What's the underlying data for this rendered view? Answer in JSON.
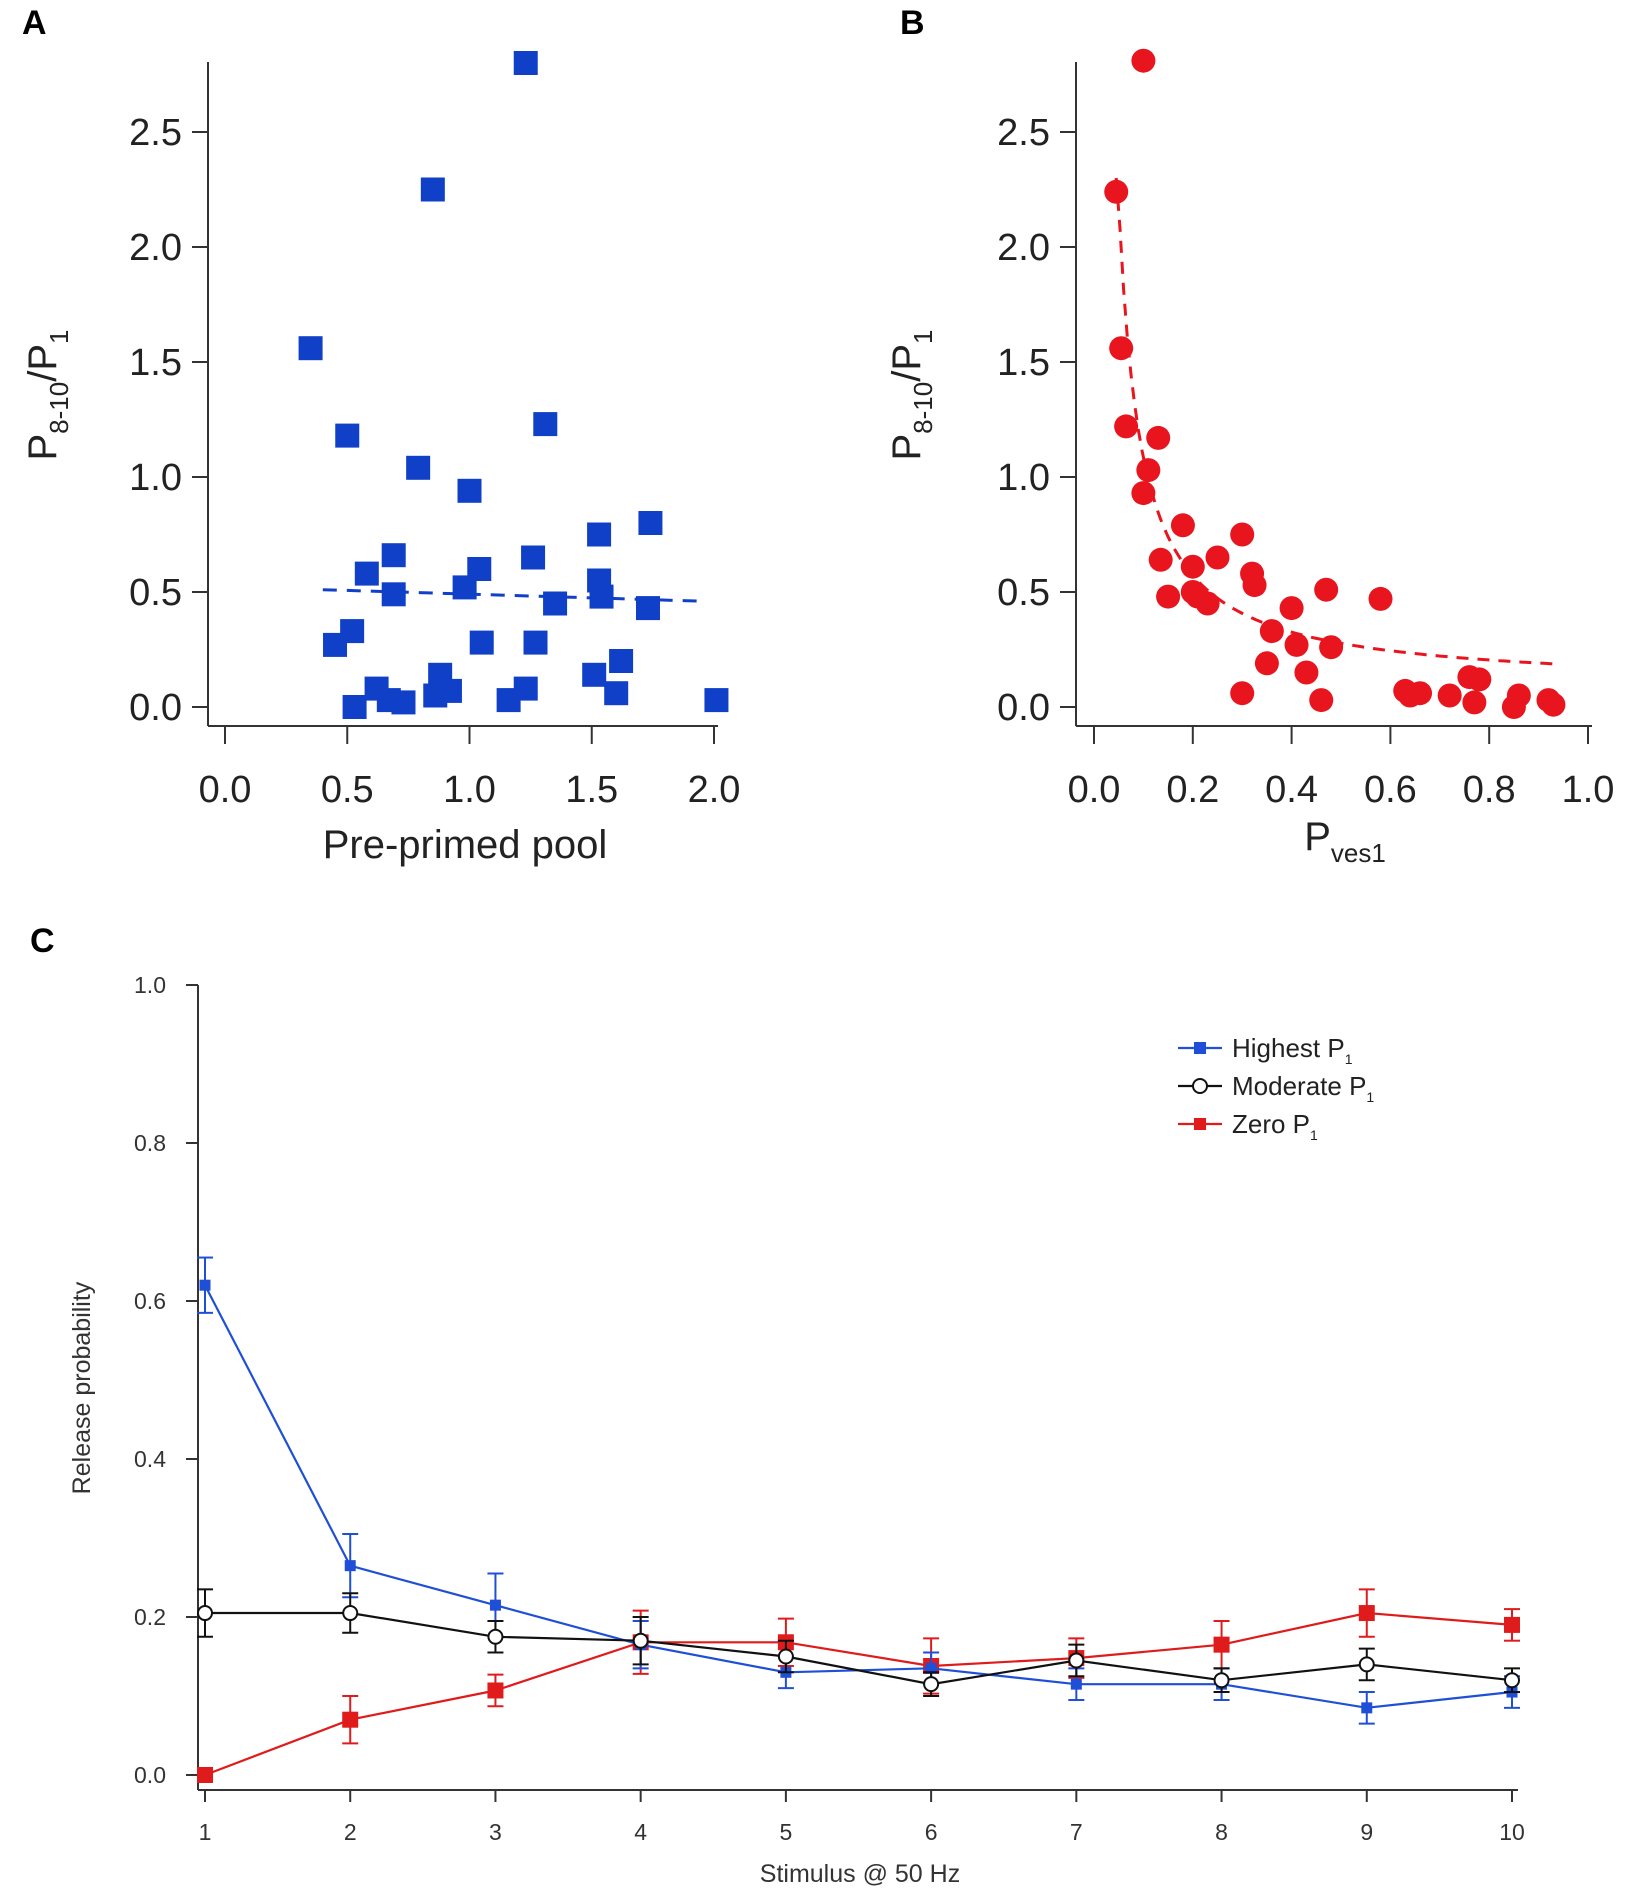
{
  "chart_data": [
    {
      "id": "A",
      "type": "scatter",
      "panel_label": "A",
      "xlabel": "Pre-primed pool",
      "ylabel_main": "P",
      "ylabel_sub": "8-10",
      "ylabel_tail": "/P",
      "ylabel_tail_sub": "1",
      "xlim": [
        0,
        2.0
      ],
      "ylim": [
        0,
        2.8
      ],
      "xticks": [
        "0.0",
        "0.5",
        "1.0",
        "1.5",
        "2.0"
      ],
      "yticks": [
        "0.0",
        "0.5",
        "1.0",
        "1.5",
        "2.0",
        "2.5"
      ],
      "color": "#1040c8",
      "marker": "square",
      "fit_line": {
        "x": [
          0.4,
          1.95
        ],
        "y": [
          0.51,
          0.46
        ],
        "style": "dashed"
      },
      "points": [
        {
          "x": 1.23,
          "y": 2.8
        },
        {
          "x": 0.85,
          "y": 2.25
        },
        {
          "x": 0.35,
          "y": 1.56
        },
        {
          "x": 0.5,
          "y": 1.18
        },
        {
          "x": 1.31,
          "y": 1.23
        },
        {
          "x": 0.79,
          "y": 1.04
        },
        {
          "x": 1.0,
          "y": 0.94
        },
        {
          "x": 1.74,
          "y": 0.8
        },
        {
          "x": 1.53,
          "y": 0.75
        },
        {
          "x": 0.69,
          "y": 0.66
        },
        {
          "x": 1.26,
          "y": 0.65
        },
        {
          "x": 1.04,
          "y": 0.6
        },
        {
          "x": 0.58,
          "y": 0.58
        },
        {
          "x": 1.53,
          "y": 0.55
        },
        {
          "x": 0.98,
          "y": 0.52
        },
        {
          "x": 0.69,
          "y": 0.49
        },
        {
          "x": 1.54,
          "y": 0.48
        },
        {
          "x": 1.35,
          "y": 0.45
        },
        {
          "x": 1.73,
          "y": 0.43
        },
        {
          "x": 0.52,
          "y": 0.33
        },
        {
          "x": 0.45,
          "y": 0.27
        },
        {
          "x": 1.05,
          "y": 0.28
        },
        {
          "x": 1.27,
          "y": 0.28
        },
        {
          "x": 1.62,
          "y": 0.2
        },
        {
          "x": 0.88,
          "y": 0.14
        },
        {
          "x": 1.51,
          "y": 0.14
        },
        {
          "x": 0.62,
          "y": 0.08
        },
        {
          "x": 0.92,
          "y": 0.07
        },
        {
          "x": 1.23,
          "y": 0.08
        },
        {
          "x": 0.86,
          "y": 0.05
        },
        {
          "x": 1.6,
          "y": 0.06
        },
        {
          "x": 0.67,
          "y": 0.03
        },
        {
          "x": 0.73,
          "y": 0.02
        },
        {
          "x": 1.16,
          "y": 0.03
        },
        {
          "x": 0.53,
          "y": 0.0
        },
        {
          "x": 2.01,
          "y": 0.03
        }
      ]
    },
    {
      "id": "B",
      "type": "scatter",
      "panel_label": "B",
      "xlabel": "P",
      "xlabel_sub": "ves1",
      "ylabel_main": "P",
      "ylabel_sub": "8-10",
      "ylabel_tail": "/P",
      "ylabel_tail_sub": "1",
      "xlim": [
        0,
        1.0
      ],
      "ylim": [
        0,
        2.8
      ],
      "xticks": [
        "0.0",
        "0.2",
        "0.4",
        "0.6",
        "0.8",
        "1.0"
      ],
      "yticks": [
        "0.0",
        "0.5",
        "1.0",
        "1.5",
        "2.0",
        "2.5"
      ],
      "color": "#e8141e",
      "marker": "circle",
      "fit_curve": {
        "style": "dashed",
        "x_from": 0.045,
        "x_to": 0.94
      },
      "points": [
        {
          "x": 0.1,
          "y": 2.81
        },
        {
          "x": 0.045,
          "y": 2.24
        },
        {
          "x": 0.055,
          "y": 1.56
        },
        {
          "x": 0.065,
          "y": 1.22
        },
        {
          "x": 0.13,
          "y": 1.17
        },
        {
          "x": 0.11,
          "y": 1.03
        },
        {
          "x": 0.1,
          "y": 0.93
        },
        {
          "x": 0.18,
          "y": 0.79
        },
        {
          "x": 0.3,
          "y": 0.75
        },
        {
          "x": 0.25,
          "y": 0.65
        },
        {
          "x": 0.135,
          "y": 0.64
        },
        {
          "x": 0.2,
          "y": 0.61
        },
        {
          "x": 0.32,
          "y": 0.58
        },
        {
          "x": 0.325,
          "y": 0.53
        },
        {
          "x": 0.47,
          "y": 0.51
        },
        {
          "x": 0.2,
          "y": 0.5
        },
        {
          "x": 0.21,
          "y": 0.48
        },
        {
          "x": 0.15,
          "y": 0.48
        },
        {
          "x": 0.23,
          "y": 0.45
        },
        {
          "x": 0.58,
          "y": 0.47
        },
        {
          "x": 0.4,
          "y": 0.43
        },
        {
          "x": 0.36,
          "y": 0.33
        },
        {
          "x": 0.41,
          "y": 0.27
        },
        {
          "x": 0.48,
          "y": 0.26
        },
        {
          "x": 0.35,
          "y": 0.19
        },
        {
          "x": 0.43,
          "y": 0.15
        },
        {
          "x": 0.76,
          "y": 0.13
        },
        {
          "x": 0.78,
          "y": 0.12
        },
        {
          "x": 0.63,
          "y": 0.07
        },
        {
          "x": 0.64,
          "y": 0.05
        },
        {
          "x": 0.72,
          "y": 0.05
        },
        {
          "x": 0.66,
          "y": 0.06
        },
        {
          "x": 0.86,
          "y": 0.05
        },
        {
          "x": 0.3,
          "y": 0.06
        },
        {
          "x": 0.46,
          "y": 0.03
        },
        {
          "x": 0.77,
          "y": 0.02
        },
        {
          "x": 0.85,
          "y": 0.0
        },
        {
          "x": 0.92,
          "y": 0.03
        },
        {
          "x": 0.93,
          "y": 0.01
        }
      ]
    },
    {
      "id": "C",
      "type": "line",
      "panel_label": "C",
      "xlabel": "Stimulus @ 50 Hz",
      "ylabel": "Release probability",
      "xlim": [
        1,
        10
      ],
      "ylim": [
        0,
        1.0
      ],
      "xticks": [
        "1",
        "2",
        "3",
        "4",
        "5",
        "6",
        "7",
        "8",
        "9",
        "10"
      ],
      "yticks": [
        "0.0",
        "0.2",
        "0.4",
        "0.6",
        "0.8",
        "1.0"
      ],
      "x": [
        1,
        2,
        3,
        4,
        5,
        6,
        7,
        8,
        9,
        10
      ],
      "series": [
        {
          "name": "Highest P",
          "name_sub": "1",
          "color": "#1f4fd6",
          "marker": "square",
          "values": [
            0.62,
            0.265,
            0.215,
            0.165,
            0.13,
            0.135,
            0.115,
            0.115,
            0.085,
            0.105
          ],
          "errors": [
            0.035,
            0.04,
            0.04,
            0.03,
            0.02,
            0.02,
            0.02,
            0.02,
            0.02,
            0.02
          ]
        },
        {
          "name": "Moderate P",
          "name_sub": "1",
          "color": "#111111",
          "marker": "open-circle",
          "values": [
            0.205,
            0.205,
            0.175,
            0.17,
            0.15,
            0.115,
            0.145,
            0.12,
            0.14,
            0.12
          ],
          "errors": [
            0.03,
            0.025,
            0.02,
            0.03,
            0.02,
            0.015,
            0.02,
            0.015,
            0.02,
            0.015
          ]
        },
        {
          "name": "Zero P",
          "name_sub": "1",
          "color": "#e01b1b",
          "marker": "square",
          "values": [
            0.0,
            0.07,
            0.107,
            0.168,
            0.168,
            0.138,
            0.148,
            0.165,
            0.205,
            0.19
          ],
          "errors": [
            0.0,
            0.03,
            0.02,
            0.04,
            0.03,
            0.035,
            0.025,
            0.03,
            0.03,
            0.02
          ]
        }
      ]
    }
  ]
}
